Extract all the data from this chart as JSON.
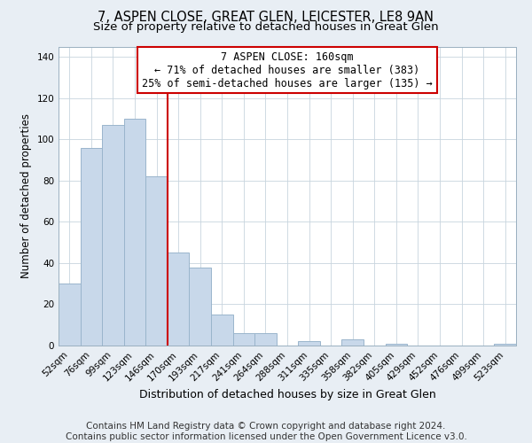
{
  "title": "7, ASPEN CLOSE, GREAT GLEN, LEICESTER, LE8 9AN",
  "subtitle": "Size of property relative to detached houses in Great Glen",
  "xlabel": "Distribution of detached houses by size in Great Glen",
  "ylabel": "Number of detached properties",
  "bar_labels": [
    "52sqm",
    "76sqm",
    "99sqm",
    "123sqm",
    "146sqm",
    "170sqm",
    "193sqm",
    "217sqm",
    "241sqm",
    "264sqm",
    "288sqm",
    "311sqm",
    "335sqm",
    "358sqm",
    "382sqm",
    "405sqm",
    "429sqm",
    "452sqm",
    "476sqm",
    "499sqm",
    "523sqm"
  ],
  "bar_values": [
    30,
    96,
    107,
    110,
    82,
    45,
    38,
    15,
    6,
    6,
    0,
    2,
    0,
    3,
    0,
    1,
    0,
    0,
    0,
    0,
    1
  ],
  "bar_color": "#c8d8ea",
  "bar_edgecolor": "#9ab5cc",
  "ylim": [
    0,
    145
  ],
  "yticks": [
    0,
    20,
    40,
    60,
    80,
    100,
    120,
    140
  ],
  "vline_color": "#cc0000",
  "annotation_title": "7 ASPEN CLOSE: 160sqm",
  "annotation_line1": "← 71% of detached houses are smaller (383)",
  "annotation_line2": "25% of semi-detached houses are larger (135) →",
  "annotation_box_facecolor": "#ffffff",
  "annotation_box_edgecolor": "#cc0000",
  "footer_line1": "Contains HM Land Registry data © Crown copyright and database right 2024.",
  "footer_line2": "Contains public sector information licensed under the Open Government Licence v3.0.",
  "bg_color": "#e8eef4",
  "plot_bg_color": "#ffffff",
  "title_fontsize": 10.5,
  "subtitle_fontsize": 9.5,
  "xlabel_fontsize": 9,
  "ylabel_fontsize": 8.5,
  "tick_fontsize": 7.5,
  "annotation_fontsize": 8.5,
  "footer_fontsize": 7.5
}
